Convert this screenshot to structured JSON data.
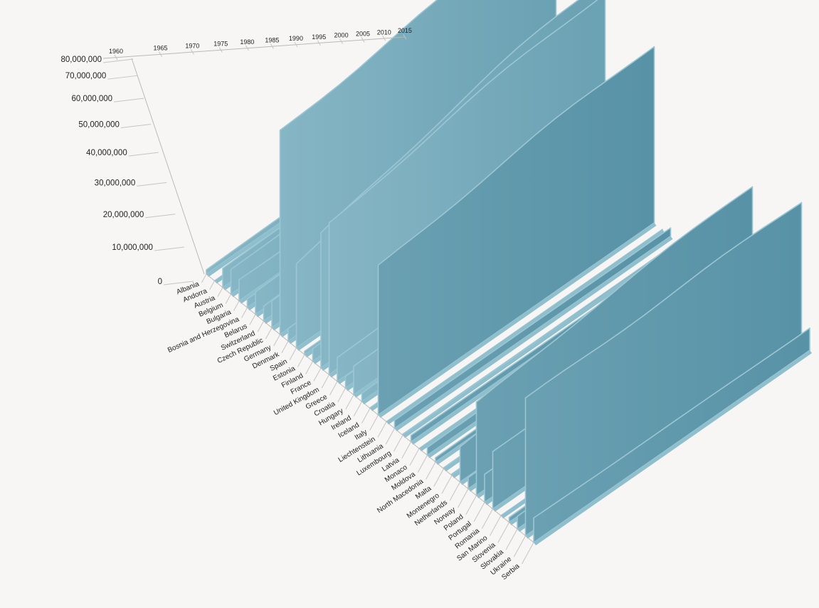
{
  "chart_data": {
    "type": "area",
    "title": "",
    "xlabel": "",
    "ylabel": "",
    "x_axis": {
      "ticks": [
        1960,
        1965,
        1970,
        1975,
        1980,
        1985,
        1990,
        1995,
        2000,
        2005,
        2010,
        2015
      ],
      "range": [
        1960,
        2018
      ]
    },
    "y_axis": {
      "ticks": [
        0,
        10000000,
        20000000,
        30000000,
        40000000,
        50000000,
        60000000,
        70000000,
        80000000
      ],
      "tick_labels": [
        "0",
        "10,000,000",
        "20,000,000",
        "30,000,000",
        "40,000,000",
        "50,000,000",
        "60,000,000",
        "70,000,000",
        "80,000,000"
      ],
      "range": [
        0,
        80000000
      ]
    },
    "categories": [
      "Albania",
      "Andorra",
      "Austria",
      "Belgium",
      "Bulgaria",
      "Bosnia and Herzegovina",
      "Belarus",
      "Switzerland",
      "Czech Republic",
      "Germany",
      "Denmark",
      "Spain",
      "Estonia",
      "Finland",
      "France",
      "United Kingdom",
      "Greece",
      "Croatia",
      "Hungary",
      "Ireland",
      "Iceland",
      "Italy",
      "Liechtenstein",
      "Lithuania",
      "Luxembourg",
      "Latvia",
      "Monaco",
      "Moldova",
      "North Macedonia",
      "Malta",
      "Montenegro",
      "Netherlands",
      "Norway",
      "Poland",
      "Portugal",
      "Romania",
      "San Marino",
      "Slovenia",
      "Slovakia",
      "Ukraine",
      "Serbia"
    ],
    "series": [
      {
        "name": "Albania",
        "start": 1600000,
        "end": 2900000
      },
      {
        "name": "Andorra",
        "start": 13000,
        "end": 77000
      },
      {
        "name": "Austria",
        "start": 7000000,
        "end": 8800000
      },
      {
        "name": "Belgium",
        "start": 9150000,
        "end": 11400000
      },
      {
        "name": "Bulgaria",
        "start": 7870000,
        "end": 7000000
      },
      {
        "name": "Bosnia and Herzegovina",
        "start": 3200000,
        "end": 3300000
      },
      {
        "name": "Belarus",
        "start": 8200000,
        "end": 9500000
      },
      {
        "name": "Switzerland",
        "start": 5300000,
        "end": 8500000
      },
      {
        "name": "Czech Republic",
        "start": 9600000,
        "end": 10600000
      },
      {
        "name": "Germany",
        "start": 72800000,
        "end": 82900000
      },
      {
        "name": "Denmark",
        "start": 4580000,
        "end": 5800000
      },
      {
        "name": "Spain",
        "start": 30400000,
        "end": 46700000
      },
      {
        "name": "Estonia",
        "start": 1200000,
        "end": 1320000
      },
      {
        "name": "Finland",
        "start": 4430000,
        "end": 5500000
      },
      {
        "name": "France",
        "start": 46600000,
        "end": 66900000
      },
      {
        "name": "United Kingdom",
        "start": 52400000,
        "end": 66400000
      },
      {
        "name": "Greece",
        "start": 8330000,
        "end": 10700000
      },
      {
        "name": "Croatia",
        "start": 4140000,
        "end": 4100000
      },
      {
        "name": "Hungary",
        "start": 9980000,
        "end": 9770000
      },
      {
        "name": "Ireland",
        "start": 2830000,
        "end": 4850000
      },
      {
        "name": "Iceland",
        "start": 176000,
        "end": 353000
      },
      {
        "name": "Italy",
        "start": 50200000,
        "end": 60400000
      },
      {
        "name": "Liechtenstein",
        "start": 16500,
        "end": 38000
      },
      {
        "name": "Lithuania",
        "start": 2780000,
        "end": 2800000
      },
      {
        "name": "Luxembourg",
        "start": 314000,
        "end": 608000
      },
      {
        "name": "Latvia",
        "start": 2120000,
        "end": 1930000
      },
      {
        "name": "Monaco",
        "start": 22400,
        "end": 38700
      },
      {
        "name": "Moldova",
        "start": 2540000,
        "end": 3550000
      },
      {
        "name": "North Macedonia",
        "start": 1400000,
        "end": 2080000
      },
      {
        "name": "Malta",
        "start": 313000,
        "end": 484000
      },
      {
        "name": "Montenegro",
        "start": 487000,
        "end": 622000
      },
      {
        "name": "Netherlands",
        "start": 11500000,
        "end": 17200000
      },
      {
        "name": "Norway",
        "start": 3580000,
        "end": 5300000
      },
      {
        "name": "Poland",
        "start": 29600000,
        "end": 37900000
      },
      {
        "name": "Portugal",
        "start": 8860000,
        "end": 10300000
      },
      {
        "name": "Romania",
        "start": 18400000,
        "end": 19500000
      },
      {
        "name": "San Marino",
        "start": 15400,
        "end": 33800
      },
      {
        "name": "Slovenia",
        "start": 1580000,
        "end": 2070000
      },
      {
        "name": "Slovakia",
        "start": 3990000,
        "end": 5450000
      },
      {
        "name": "Ukraine",
        "start": 42700000,
        "end": 44600000
      },
      {
        "name": "Serbia",
        "start": 7600000,
        "end": 6980000
      }
    ],
    "grid": false,
    "legend": "none"
  },
  "style": {
    "background": "#f7f6f5",
    "area_color": "#5f97aa",
    "area_light": "#86b6c5",
    "axis_color": "#b9b9b9",
    "text_color": "#222222"
  }
}
